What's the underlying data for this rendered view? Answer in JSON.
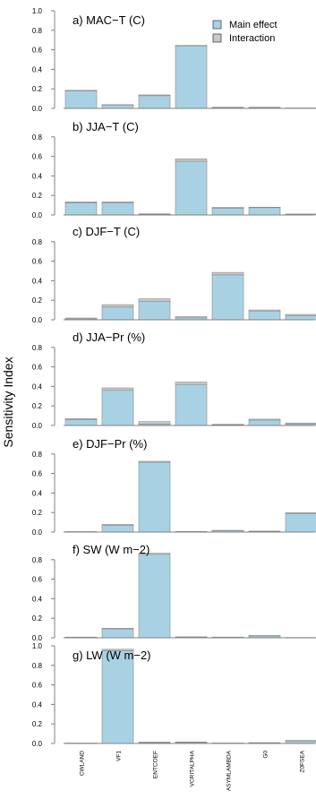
{
  "chart_data": {
    "type": "bar",
    "stacked": true,
    "ylabel": "Sensitivity Index",
    "categories": [
      "CWLAND",
      "VF1",
      "ENTCOEF",
      "VCRITALPHA",
      "ASYMLAMBDA",
      "G0",
      "Z0FSEA"
    ],
    "legend": {
      "position": "top-right",
      "entries": [
        {
          "label": "Main effect",
          "color": "#a8d2e4"
        },
        {
          "label": "Interaction",
          "color": "#c8c8c8"
        }
      ]
    },
    "colors": {
      "main": "#a8d2e4",
      "interaction": "#c8c8c8",
      "bar_border": "#8a8a8a",
      "axis": "#808080"
    },
    "panels": [
      {
        "title": "a) MAC−T (C)",
        "yticks": [
          "0.0",
          "0.2",
          "0.4",
          "0.6",
          "0.8",
          "1.0"
        ],
        "ylim": [
          0,
          1.0
        ],
        "main": [
          0.18,
          0.035,
          0.13,
          0.64,
          0.01,
          0.01,
          0.003
        ],
        "interaction": [
          0.005,
          0.003,
          0.008,
          0.005,
          0.002,
          0.002,
          0.001
        ]
      },
      {
        "title": "b) JJA−T (C)",
        "yticks": [
          "0.0",
          "0.2",
          "0.4",
          "0.6",
          "0.8"
        ],
        "ylim": [
          0,
          1.0
        ],
        "main": [
          0.125,
          0.125,
          0.008,
          0.55,
          0.07,
          0.075,
          0.008
        ],
        "interaction": [
          0.01,
          0.01,
          0.004,
          0.025,
          0.008,
          0.005,
          0.002
        ]
      },
      {
        "title": "c) DJF−T (C)",
        "yticks": [
          "0.0",
          "0.2",
          "0.4",
          "0.6",
          "0.8"
        ],
        "ylim": [
          0,
          1.0
        ],
        "main": [
          0.01,
          0.13,
          0.19,
          0.02,
          0.46,
          0.09,
          0.04
        ],
        "interaction": [
          0.008,
          0.025,
          0.025,
          0.012,
          0.025,
          0.01,
          0.015
        ]
      },
      {
        "title": "d) JJA−Pr (%)",
        "yticks": [
          "0.0",
          "0.2",
          "0.4",
          "0.6",
          "0.8"
        ],
        "ylim": [
          0,
          1.0
        ],
        "main": [
          0.06,
          0.36,
          0.015,
          0.42,
          0.008,
          0.055,
          0.015
        ],
        "interaction": [
          0.01,
          0.025,
          0.025,
          0.025,
          0.004,
          0.01,
          0.01
        ]
      },
      {
        "title": "e) DJF−Pr (%)",
        "yticks": [
          "0.0",
          "0.2",
          "0.4",
          "0.6",
          "0.8"
        ],
        "ylim": [
          0,
          1.0
        ],
        "main": [
          0.003,
          0.07,
          0.715,
          0.005,
          0.015,
          0.008,
          0.19
        ],
        "interaction": [
          0.002,
          0.008,
          0.01,
          0.002,
          0.003,
          0.002,
          0.01
        ]
      },
      {
        "title": "f) SW (W m−2)",
        "yticks": [
          "0.0",
          "0.2",
          "0.4",
          "0.6",
          "0.8"
        ],
        "ylim": [
          0,
          1.0
        ],
        "main": [
          0.005,
          0.09,
          0.855,
          0.008,
          0.005,
          0.018,
          0.002
        ],
        "interaction": [
          0.002,
          0.008,
          0.01,
          0.002,
          0.002,
          0.005,
          0.001
        ]
      },
      {
        "title": "g) LW (W m−2)",
        "yticks": [
          "0.0",
          "0.2",
          "0.4",
          "0.6",
          "0.8",
          "1.0"
        ],
        "ylim": [
          0,
          1.0
        ],
        "main": [
          0.003,
          0.95,
          0.008,
          0.01,
          0.003,
          0.005,
          0.02
        ],
        "interaction": [
          0.001,
          0.015,
          0.006,
          0.006,
          0.002,
          0.004,
          0.012
        ]
      }
    ]
  }
}
